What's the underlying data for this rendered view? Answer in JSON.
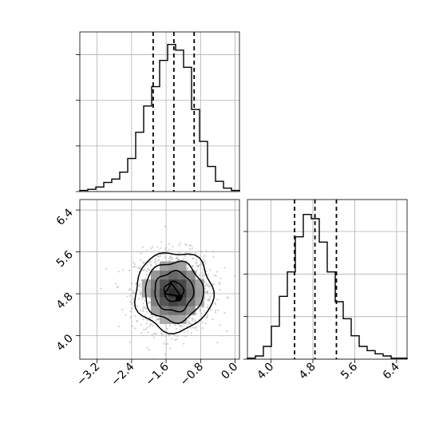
{
  "chart_data": {
    "type": "corner",
    "grid": true,
    "parameters": [
      {
        "index": 0,
        "range": [
          -3.6,
          0.1
        ],
        "ticks": [
          -3.2,
          -2.4,
          -1.6,
          -0.8,
          0.0
        ],
        "tick_labels": [
          "−3.2",
          "−2.4",
          "−1.6",
          "−0.8",
          "0.0"
        ],
        "quantiles": [
          -1.9,
          -1.42,
          -0.95
        ]
      },
      {
        "index": 1,
        "range": [
          3.55,
          6.6
        ],
        "ticks": [
          4.0,
          4.8,
          5.6,
          6.4
        ],
        "tick_labels": [
          "4.0",
          "4.8",
          "5.6",
          "6.4"
        ],
        "quantiles": [
          4.45,
          4.84,
          5.25
        ]
      }
    ],
    "panels": [
      {
        "name": "marginal-p0",
        "type": "histogram",
        "bin_edges": [
          -3.6,
          -3.415,
          -3.23,
          -3.045,
          -2.86,
          -2.675,
          -2.49,
          -2.305,
          -2.12,
          -1.935,
          -1.75,
          -1.565,
          -1.38,
          -1.195,
          -1.01,
          -0.825,
          -0.64,
          -0.455,
          -0.27,
          -0.085,
          0.1
        ],
        "counts": [
          1,
          2,
          4,
          8,
          11,
          17,
          29,
          52,
          75,
          92,
          115,
          129,
          124,
          109,
          72,
          44,
          22,
          9,
          3,
          1
        ],
        "quantiles": [
          -1.9,
          -1.42,
          -0.95
        ],
        "ylim": [
          0,
          140
        ],
        "yticks": [
          0,
          40,
          80,
          120
        ]
      },
      {
        "name": "joint-p0-p1",
        "type": "2d-density",
        "xlim": [
          -3.6,
          0.1
        ],
        "ylim": [
          3.55,
          6.6
        ],
        "xticks": [
          -3.2,
          -2.4,
          -1.6,
          -0.8,
          0.0
        ],
        "yticks": [
          4.0,
          4.8,
          5.6,
          6.4
        ],
        "center": [
          -1.42,
          4.84
        ],
        "sigma": [
          0.45,
          0.38
        ],
        "contour_levels_sigma": [
          0.5,
          1.0,
          1.5,
          2.0
        ],
        "n_scatter_points": 1200
      },
      {
        "name": "marginal-p1",
        "type": "histogram",
        "bin_edges": [
          3.55,
          3.7025,
          3.855,
          4.0075,
          4.16,
          4.3125,
          4.465,
          4.6175,
          4.77,
          4.9225,
          5.075,
          5.2275,
          5.38,
          5.5325,
          5.685,
          5.8375,
          5.99,
          6.1425,
          6.295,
          6.4475,
          6.6
        ],
        "counts": [
          1,
          3,
          12,
          31,
          59,
          82,
          115,
          136,
          132,
          110,
          82,
          54,
          38,
          22,
          12,
          8,
          5,
          3,
          1,
          1
        ],
        "quantiles": [
          4.45,
          4.84,
          5.25
        ],
        "ylim": [
          0,
          150
        ],
        "yticks": [
          0,
          40,
          80,
          120
        ]
      }
    ]
  }
}
